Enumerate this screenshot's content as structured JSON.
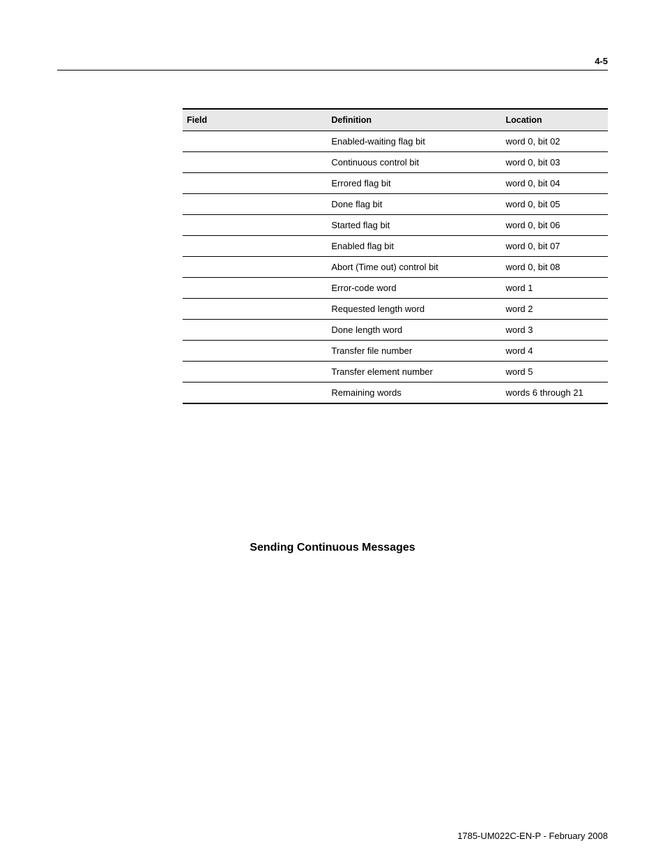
{
  "page_number": "4-5",
  "table": {
    "headers": {
      "field": "Field",
      "definition": "Definition",
      "location": "Location"
    },
    "rows": [
      {
        "field": "",
        "definition": "Enabled-waiting flag bit",
        "location": "word 0, bit 02"
      },
      {
        "field": "",
        "definition": "Continuous control bit",
        "location": "word 0, bit 03"
      },
      {
        "field": "",
        "definition": "Errored flag bit",
        "location": "word 0, bit 04"
      },
      {
        "field": "",
        "definition": "Done flag bit",
        "location": "word 0, bit 05"
      },
      {
        "field": "",
        "definition": "Started flag bit",
        "location": "word 0, bit 06"
      },
      {
        "field": "",
        "definition": "Enabled flag bit",
        "location": "word 0, bit 07"
      },
      {
        "field": "",
        "definition": "Abort (Time out) control bit",
        "location": "word 0, bit 08"
      },
      {
        "field": "",
        "definition": "Error-code word",
        "location": "word 1"
      },
      {
        "field": "",
        "definition": "Requested length word",
        "location": "word 2"
      },
      {
        "field": "",
        "definition": "Done length word",
        "location": "word 3"
      },
      {
        "field": "",
        "definition": "Transfer file number",
        "location": "word 4"
      },
      {
        "field": "",
        "definition": "Transfer element number",
        "location": "word 5"
      },
      {
        "field": "",
        "definition": "Remaining words",
        "location": "words 6 through 21"
      }
    ]
  },
  "section_heading": "Sending Continuous Messages",
  "footer": "1785-UM022C-EN-P - February 2008"
}
